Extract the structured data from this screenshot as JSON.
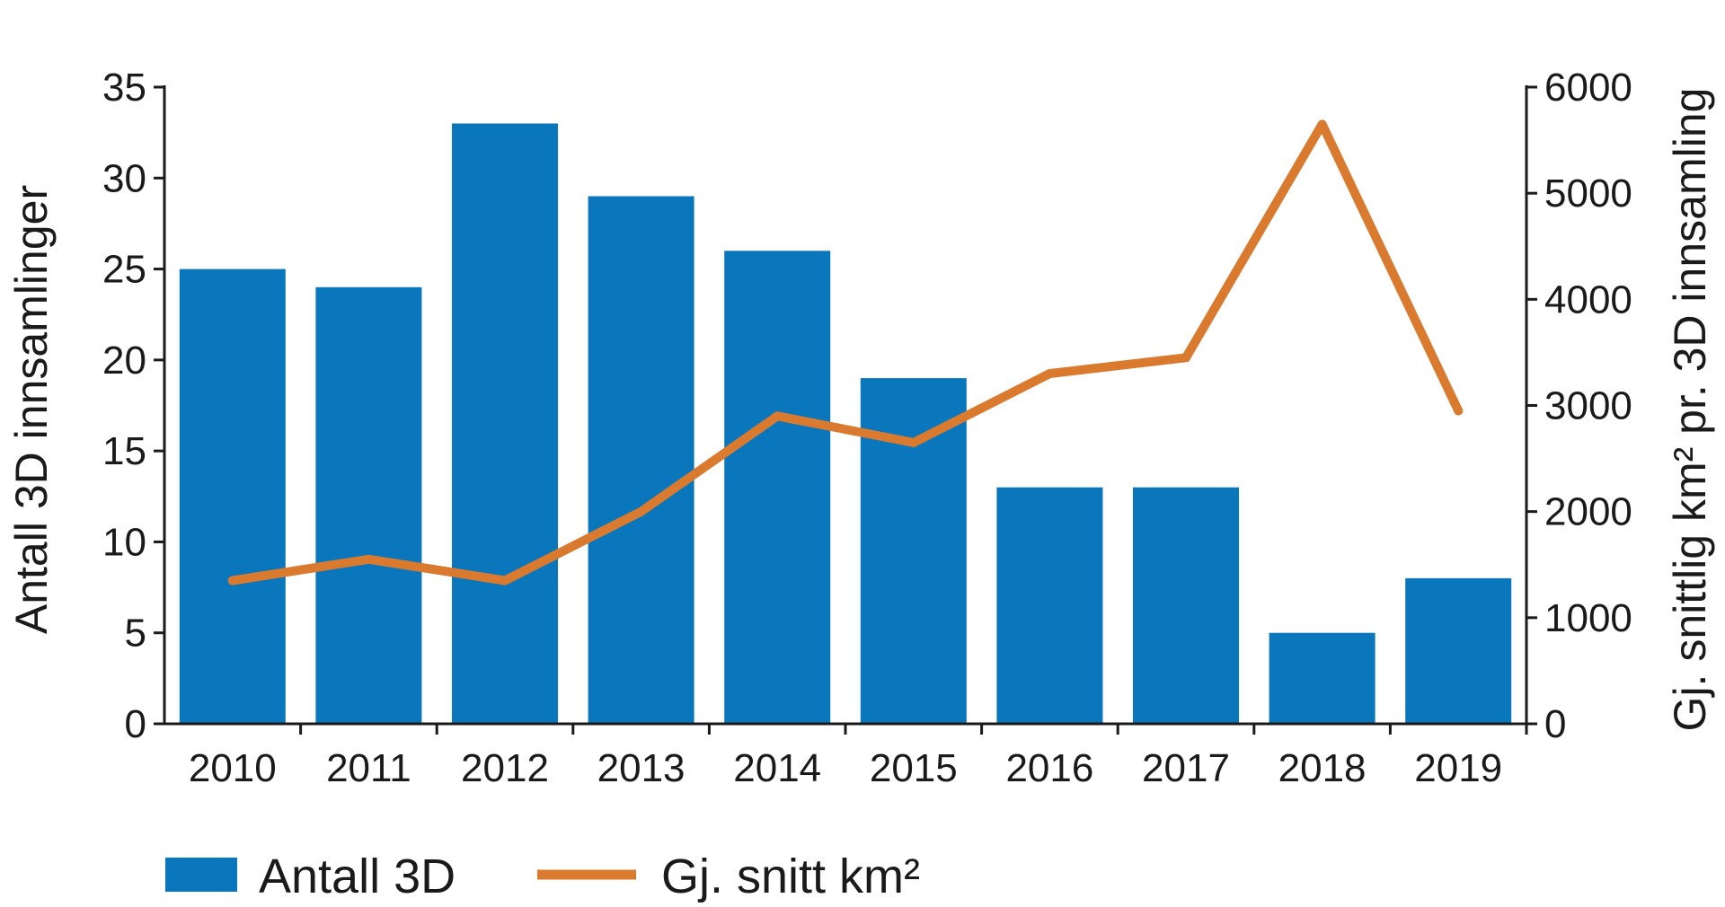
{
  "chart_data": {
    "type": "bar",
    "categories": [
      "2010",
      "2011",
      "2012",
      "2013",
      "2014",
      "2015",
      "2016",
      "2017",
      "2018",
      "2019"
    ],
    "series": [
      {
        "name": "Antall 3D",
        "type": "bar",
        "axis": "left",
        "color": "#0a77bd",
        "values": [
          25,
          24,
          33,
          29,
          26,
          19,
          13,
          13,
          5,
          8
        ]
      },
      {
        "name": "Gj. snitt km²",
        "type": "line",
        "axis": "right",
        "color": "#d97a2f",
        "values": [
          1350,
          1550,
          1350,
          2000,
          2900,
          2650,
          3300,
          3450,
          5650,
          2950
        ]
      }
    ],
    "title": "",
    "xlabel": "",
    "ylabel": "Antall 3D innsamlinger",
    "y2label": "Gj. snitt­lig km² pr. 3D innsamling",
    "ylim": [
      0,
      35
    ],
    "y2lim": [
      0,
      6000
    ],
    "yticks": [
      "0",
      "5",
      "10",
      "15",
      "20",
      "25",
      "30",
      "35"
    ],
    "y2ticks": [
      "0",
      "1000",
      "2000",
      "3000",
      "4000",
      "5000",
      "6000"
    ],
    "grid": false,
    "legend": "bottom-left"
  }
}
